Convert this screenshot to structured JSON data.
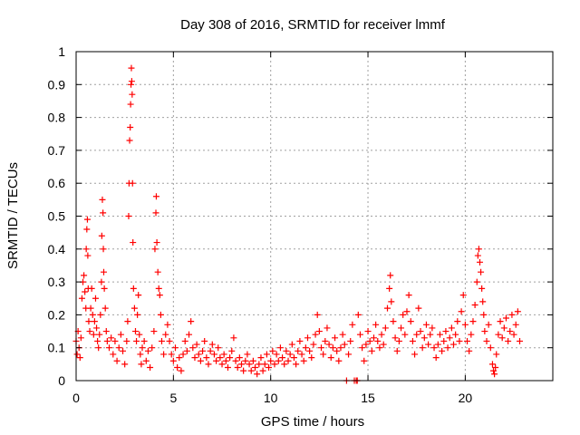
{
  "chart_data": {
    "type": "scatter",
    "title": "Day 308 of 2016, SRMTID for receiver lmmf",
    "xlabel": "GPS time / hours",
    "ylabel": "SRMTID / TECUs",
    "xlim": [
      0,
      24.5
    ],
    "ylim": [
      0,
      1
    ],
    "x_ticks": [
      0,
      5,
      10,
      15,
      20
    ],
    "x_tick_labels": [
      "0",
      "5",
      "10",
      "15",
      "20"
    ],
    "y_ticks": [
      0,
      0.1,
      0.2,
      0.3,
      0.4,
      0.5,
      0.6,
      0.7,
      0.8,
      0.9,
      1
    ],
    "y_tick_labels": [
      "0",
      "0.1",
      "0.2",
      "0.3",
      "0.4",
      "0.5",
      "0.6",
      "0.7",
      "0.8",
      "0.9",
      "1"
    ],
    "grid": true,
    "marker": "+",
    "series": [
      {
        "name": "SRMTID",
        "color": "#ff0000",
        "points": [
          [
            0.0,
            0.12
          ],
          [
            0.05,
            0.08
          ],
          [
            0.1,
            0.15
          ],
          [
            0.15,
            0.1
          ],
          [
            0.2,
            0.07
          ],
          [
            0.25,
            0.13
          ],
          [
            0.3,
            0.25
          ],
          [
            0.35,
            0.3
          ],
          [
            0.4,
            0.32
          ],
          [
            0.45,
            0.27
          ],
          [
            0.5,
            0.22
          ],
          [
            0.52,
            0.4
          ],
          [
            0.55,
            0.46
          ],
          [
            0.58,
            0.49
          ],
          [
            0.6,
            0.38
          ],
          [
            0.62,
            0.28
          ],
          [
            0.65,
            0.18
          ],
          [
            0.7,
            0.15
          ],
          [
            0.75,
            0.22
          ],
          [
            0.8,
            0.28
          ],
          [
            0.85,
            0.2
          ],
          [
            0.9,
            0.14
          ],
          [
            0.95,
            0.18
          ],
          [
            1.0,
            0.25
          ],
          [
            1.05,
            0.16
          ],
          [
            1.1,
            0.12
          ],
          [
            1.15,
            0.1
          ],
          [
            1.2,
            0.14
          ],
          [
            1.25,
            0.2
          ],
          [
            1.3,
            0.3
          ],
          [
            1.32,
            0.44
          ],
          [
            1.35,
            0.55
          ],
          [
            1.38,
            0.51
          ],
          [
            1.4,
            0.4
          ],
          [
            1.42,
            0.33
          ],
          [
            1.45,
            0.28
          ],
          [
            1.5,
            0.22
          ],
          [
            1.55,
            0.15
          ],
          [
            1.6,
            0.12
          ],
          [
            1.7,
            0.1
          ],
          [
            1.8,
            0.13
          ],
          [
            1.9,
            0.08
          ],
          [
            2.0,
            0.12
          ],
          [
            2.1,
            0.06
          ],
          [
            2.2,
            0.1
          ],
          [
            2.3,
            0.14
          ],
          [
            2.4,
            0.09
          ],
          [
            2.5,
            0.05
          ],
          [
            2.6,
            0.12
          ],
          [
            2.65,
            0.18
          ],
          [
            2.7,
            0.5
          ],
          [
            2.72,
            0.6
          ],
          [
            2.75,
            0.73
          ],
          [
            2.78,
            0.77
          ],
          [
            2.8,
            0.84
          ],
          [
            2.82,
            0.9
          ],
          [
            2.84,
            0.95
          ],
          [
            2.86,
            0.91
          ],
          [
            2.88,
            0.87
          ],
          [
            2.9,
            0.6
          ],
          [
            2.92,
            0.42
          ],
          [
            2.95,
            0.28
          ],
          [
            3.0,
            0.22
          ],
          [
            3.05,
            0.15
          ],
          [
            3.1,
            0.12
          ],
          [
            3.15,
            0.2
          ],
          [
            3.2,
            0.26
          ],
          [
            3.25,
            0.14
          ],
          [
            3.3,
            0.08
          ],
          [
            3.35,
            0.05
          ],
          [
            3.4,
            0.1
          ],
          [
            3.5,
            0.12
          ],
          [
            3.6,
            0.06
          ],
          [
            3.7,
            0.09
          ],
          [
            3.8,
            0.04
          ],
          [
            3.9,
            0.1
          ],
          [
            4.0,
            0.15
          ],
          [
            4.05,
            0.4
          ],
          [
            4.1,
            0.51
          ],
          [
            4.12,
            0.56
          ],
          [
            4.15,
            0.42
          ],
          [
            4.2,
            0.33
          ],
          [
            4.25,
            0.28
          ],
          [
            4.3,
            0.26
          ],
          [
            4.35,
            0.2
          ],
          [
            4.4,
            0.12
          ],
          [
            4.5,
            0.08
          ],
          [
            4.6,
            0.14
          ],
          [
            4.7,
            0.17
          ],
          [
            4.8,
            0.12
          ],
          [
            4.9,
            0.08
          ],
          [
            5.0,
            0.06
          ],
          [
            5.1,
            0.1
          ],
          [
            5.2,
            0.04
          ],
          [
            5.3,
            0.07
          ],
          [
            5.4,
            0.03
          ],
          [
            5.5,
            0.08
          ],
          [
            5.6,
            0.12
          ],
          [
            5.7,
            0.09
          ],
          [
            5.8,
            0.14
          ],
          [
            5.9,
            0.18
          ],
          [
            6.0,
            0.1
          ],
          [
            6.1,
            0.07
          ],
          [
            6.2,
            0.11
          ],
          [
            6.3,
            0.08
          ],
          [
            6.4,
            0.06
          ],
          [
            6.5,
            0.09
          ],
          [
            6.6,
            0.12
          ],
          [
            6.7,
            0.07
          ],
          [
            6.8,
            0.05
          ],
          [
            6.9,
            0.09
          ],
          [
            7.0,
            0.11
          ],
          [
            7.1,
            0.08
          ],
          [
            7.2,
            0.06
          ],
          [
            7.3,
            0.1
          ],
          [
            7.4,
            0.07
          ],
          [
            7.5,
            0.05
          ],
          [
            7.6,
            0.08
          ],
          [
            7.7,
            0.06
          ],
          [
            7.8,
            0.04
          ],
          [
            7.9,
            0.07
          ],
          [
            8.0,
            0.09
          ],
          [
            8.1,
            0.13
          ],
          [
            8.2,
            0.06
          ],
          [
            8.3,
            0.04
          ],
          [
            8.4,
            0.07
          ],
          [
            8.5,
            0.05
          ],
          [
            8.6,
            0.03
          ],
          [
            8.7,
            0.06
          ],
          [
            8.8,
            0.08
          ],
          [
            8.9,
            0.05
          ],
          [
            9.0,
            0.03
          ],
          [
            9.1,
            0.06
          ],
          [
            9.2,
            0.04
          ],
          [
            9.3,
            0.02
          ],
          [
            9.4,
            0.05
          ],
          [
            9.5,
            0.07
          ],
          [
            9.6,
            0.03
          ],
          [
            9.7,
            0.05
          ],
          [
            9.8,
            0.08
          ],
          [
            9.9,
            0.04
          ],
          [
            10.0,
            0.06
          ],
          [
            10.1,
            0.09
          ],
          [
            10.2,
            0.05
          ],
          [
            10.3,
            0.08
          ],
          [
            10.4,
            0.06
          ],
          [
            10.5,
            0.1
          ],
          [
            10.6,
            0.07
          ],
          [
            10.7,
            0.05
          ],
          [
            10.8,
            0.09
          ],
          [
            10.9,
            0.06
          ],
          [
            11.0,
            0.08
          ],
          [
            11.1,
            0.11
          ],
          [
            11.2,
            0.07
          ],
          [
            11.3,
            0.05
          ],
          [
            11.4,
            0.09
          ],
          [
            11.5,
            0.12
          ],
          [
            11.6,
            0.08
          ],
          [
            11.7,
            0.06
          ],
          [
            11.8,
            0.1
          ],
          [
            11.9,
            0.13
          ],
          [
            12.0,
            0.09
          ],
          [
            12.1,
            0.07
          ],
          [
            12.2,
            0.11
          ],
          [
            12.3,
            0.14
          ],
          [
            12.4,
            0.2
          ],
          [
            12.5,
            0.15
          ],
          [
            12.6,
            0.1
          ],
          [
            12.7,
            0.08
          ],
          [
            12.8,
            0.12
          ],
          [
            12.9,
            0.16
          ],
          [
            13.0,
            0.11
          ],
          [
            13.1,
            0.07
          ],
          [
            13.2,
            0.1
          ],
          [
            13.3,
            0.13
          ],
          [
            13.4,
            0.09
          ],
          [
            13.5,
            0.06
          ],
          [
            13.6,
            0.1
          ],
          [
            13.7,
            0.14
          ],
          [
            13.8,
            0.11
          ],
          [
            13.9,
            0.0
          ],
          [
            14.0,
            0.08
          ],
          [
            14.1,
            0.12
          ],
          [
            14.2,
            0.17
          ],
          [
            14.3,
            0.0
          ],
          [
            14.4,
            0.0
          ],
          [
            14.45,
            0.0
          ],
          [
            14.5,
            0.2
          ],
          [
            14.6,
            0.14
          ],
          [
            14.7,
            0.1
          ],
          [
            14.8,
            0.06
          ],
          [
            14.9,
            0.11
          ],
          [
            15.0,
            0.15
          ],
          [
            15.1,
            0.12
          ],
          [
            15.2,
            0.09
          ],
          [
            15.3,
            0.13
          ],
          [
            15.4,
            0.17
          ],
          [
            15.5,
            0.12
          ],
          [
            15.6,
            0.1
          ],
          [
            15.7,
            0.14
          ],
          [
            15.8,
            0.11
          ],
          [
            15.9,
            0.16
          ],
          [
            16.0,
            0.22
          ],
          [
            16.1,
            0.28
          ],
          [
            16.15,
            0.32
          ],
          [
            16.2,
            0.24
          ],
          [
            16.3,
            0.18
          ],
          [
            16.4,
            0.13
          ],
          [
            16.5,
            0.09
          ],
          [
            16.6,
            0.12
          ],
          [
            16.7,
            0.16
          ],
          [
            16.8,
            0.2
          ],
          [
            16.9,
            0.14
          ],
          [
            17.0,
            0.21
          ],
          [
            17.1,
            0.26
          ],
          [
            17.2,
            0.18
          ],
          [
            17.3,
            0.12
          ],
          [
            17.4,
            0.08
          ],
          [
            17.5,
            0.14
          ],
          [
            17.6,
            0.22
          ],
          [
            17.7,
            0.15
          ],
          [
            17.8,
            0.1
          ],
          [
            17.9,
            0.13
          ],
          [
            18.0,
            0.17
          ],
          [
            18.1,
            0.11
          ],
          [
            18.2,
            0.14
          ],
          [
            18.3,
            0.16
          ],
          [
            18.4,
            0.1
          ],
          [
            18.5,
            0.07
          ],
          [
            18.6,
            0.11
          ],
          [
            18.7,
            0.14
          ],
          [
            18.8,
            0.09
          ],
          [
            18.9,
            0.12
          ],
          [
            19.0,
            0.15
          ],
          [
            19.1,
            0.1
          ],
          [
            19.2,
            0.13
          ],
          [
            19.3,
            0.16
          ],
          [
            19.4,
            0.11
          ],
          [
            19.5,
            0.14
          ],
          [
            19.6,
            0.18
          ],
          [
            19.7,
            0.12
          ],
          [
            19.8,
            0.21
          ],
          [
            19.9,
            0.26
          ],
          [
            20.0,
            0.17
          ],
          [
            20.1,
            0.12
          ],
          [
            20.2,
            0.09
          ],
          [
            20.3,
            0.14
          ],
          [
            20.4,
            0.18
          ],
          [
            20.5,
            0.23
          ],
          [
            20.6,
            0.3
          ],
          [
            20.65,
            0.38
          ],
          [
            20.7,
            0.4
          ],
          [
            20.75,
            0.36
          ],
          [
            20.8,
            0.33
          ],
          [
            20.85,
            0.28
          ],
          [
            20.9,
            0.24
          ],
          [
            20.95,
            0.2
          ],
          [
            21.0,
            0.15
          ],
          [
            21.1,
            0.12
          ],
          [
            21.2,
            0.17
          ],
          [
            21.3,
            0.1
          ],
          [
            21.4,
            0.05
          ],
          [
            21.45,
            0.03
          ],
          [
            21.5,
            0.02
          ],
          [
            21.55,
            0.04
          ],
          [
            21.6,
            0.08
          ],
          [
            21.7,
            0.14
          ],
          [
            21.8,
            0.18
          ],
          [
            21.9,
            0.13
          ],
          [
            22.0,
            0.16
          ],
          [
            22.1,
            0.19
          ],
          [
            22.2,
            0.12
          ],
          [
            22.3,
            0.15
          ],
          [
            22.4,
            0.2
          ],
          [
            22.5,
            0.14
          ],
          [
            22.6,
            0.17
          ],
          [
            22.7,
            0.21
          ],
          [
            22.8,
            0.12
          ]
        ]
      }
    ]
  }
}
